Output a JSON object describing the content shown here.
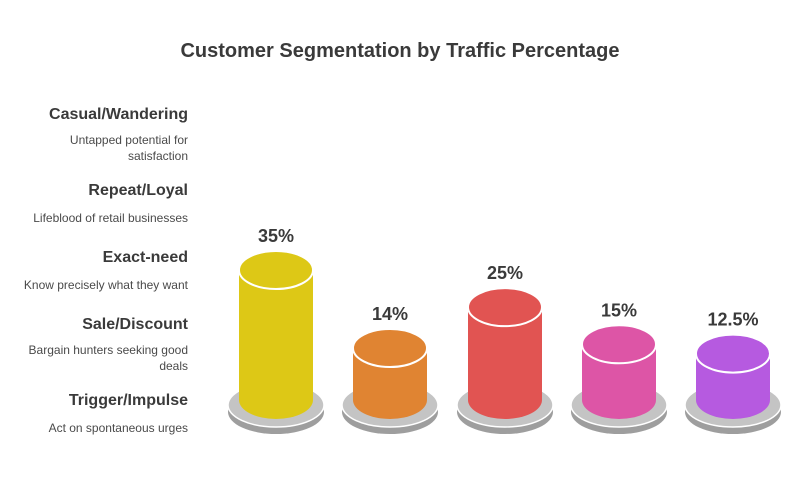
{
  "chart_data": {
    "type": "bar",
    "title": "Customer Segmentation by Traffic Percentage",
    "values": [
      35,
      14,
      25,
      15,
      12.5
    ],
    "value_labels": [
      "35%",
      "14%",
      "25%",
      "15%",
      "12.5%"
    ],
    "colors": [
      "#ddc816",
      "#e08432",
      "#e15452",
      "#dd55a6",
      "#b65ae0"
    ],
    "segments": [
      {
        "label": "Casual/Wandering",
        "description": "Untapped potential for satisfaction"
      },
      {
        "label": "Repeat/Loyal",
        "description": "Lifeblood of retail businesses"
      },
      {
        "label": "Exact-need",
        "description": "Know precisely what they want"
      },
      {
        "label": "Sale/Discount",
        "description": "Bargain hunters seeking good deals"
      },
      {
        "label": "Trigger/Impulse",
        "description": "Act on spontaneous urges"
      }
    ]
  }
}
